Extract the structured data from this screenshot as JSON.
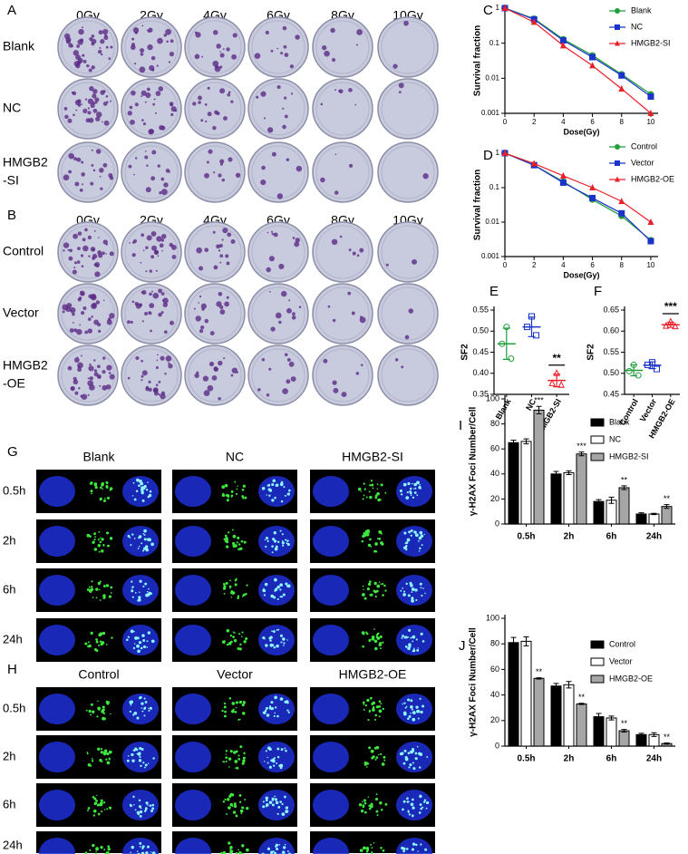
{
  "image_panels": [
    {
      "panel": "A",
      "columns": [
        "0Gy",
        "2Gy",
        "4Gy",
        "6Gy",
        "8Gy",
        "10Gy"
      ],
      "rows": [
        [
          "Blank"
        ],
        [
          "NC"
        ],
        [
          "HMGB2",
          "-SI"
        ]
      ]
    },
    {
      "panel": "B",
      "columns": [
        "0Gy",
        "2Gy",
        "4Gy",
        "6Gy",
        "8Gy",
        "10Gy"
      ],
      "rows": [
        [
          "Control"
        ],
        [
          "Vector"
        ],
        [
          "HMGB2",
          "-OE"
        ]
      ]
    },
    {
      "panel": "G",
      "columns": [
        "Blank",
        "NC",
        "HMGB2-SI"
      ],
      "rows": [
        "0.5h",
        "2h",
        "6h",
        "24h"
      ]
    },
    {
      "panel": "H",
      "columns": [
        "Control",
        "Vector",
        "HMGB2-OE"
      ],
      "rows": [
        "0.5h",
        "2h",
        "6h",
        "24h"
      ]
    }
  ],
  "chart_data": [
    {
      "panel": "C",
      "type": "line",
      "log_y": true,
      "ylabel": "Survival fraction",
      "xlabel": "Dose(Gy)",
      "x": [
        0,
        2,
        4,
        6,
        8,
        10
      ],
      "xlim": [
        0,
        10.5
      ],
      "xticks": [
        0,
        2,
        4,
        6,
        8,
        10
      ],
      "ylim": [
        0.001,
        1
      ],
      "yticks": [
        0.001,
        0.01,
        0.1,
        1
      ],
      "legend": "upper right",
      "series": [
        {
          "name": "Blank",
          "color": "#1f9e3a",
          "marker": "circle",
          "values": [
            1,
            0.5,
            0.13,
            0.045,
            0.013,
            0.0035
          ]
        },
        {
          "name": "NC",
          "color": "#1a33c8",
          "marker": "square",
          "values": [
            1,
            0.48,
            0.12,
            0.04,
            0.012,
            0.003
          ]
        },
        {
          "name": "HMGB2-SI",
          "color": "#e8202a",
          "marker": "triangle",
          "values": [
            1,
            0.4,
            0.085,
            0.023,
            0.005,
            0.001
          ]
        }
      ]
    },
    {
      "panel": "D",
      "type": "line",
      "log_y": true,
      "ylabel": "Survival fraction",
      "xlabel": "Dose(Gy)",
      "x": [
        0,
        2,
        4,
        6,
        8,
        10
      ],
      "xlim": [
        0,
        10.5
      ],
      "xticks": [
        0,
        2,
        4,
        6,
        8,
        10
      ],
      "ylim": [
        0.001,
        1
      ],
      "yticks": [
        0.001,
        0.01,
        0.1,
        1
      ],
      "legend": "upper right",
      "series": [
        {
          "name": "Control",
          "color": "#1f9e3a",
          "marker": "circle",
          "values": [
            1,
            0.45,
            0.15,
            0.045,
            0.015,
            0.003
          ]
        },
        {
          "name": "Vector",
          "color": "#1a33c8",
          "marker": "square",
          "values": [
            1,
            0.45,
            0.14,
            0.05,
            0.018,
            0.0028
          ]
        },
        {
          "name": "HMGB2-OE",
          "color": "#e8202a",
          "marker": "triangle",
          "values": [
            1,
            0.5,
            0.22,
            0.1,
            0.04,
            0.01
          ]
        }
      ]
    },
    {
      "panel": "E",
      "type": "strip",
      "ylabel": "SF2",
      "categories": [
        "Blank",
        "NC",
        "HMGB2-SI"
      ],
      "ylim": [
        0.35,
        0.55
      ],
      "yticks": [
        0.35,
        {
          "value": 0.4,
          "label": "0.40"
        },
        0.45,
        {
          "value": 0.5,
          "label": "0.50"
        },
        0.55
      ],
      "groups": [
        {
          "color": "#1f9e3a",
          "marker": "circle",
          "values": [
            0.51,
            0.47,
            0.435
          ],
          "mean": 0.47,
          "sd": 0.037
        },
        {
          "color": "#1a33c8",
          "marker": "square",
          "values": [
            0.535,
            0.51,
            0.49
          ],
          "mean": 0.51,
          "sd": 0.023
        },
        {
          "color": "#e8202a",
          "marker": "triangle",
          "values": [
            0.4,
            0.376,
            0.372
          ],
          "mean": 0.383,
          "sd": 0.015,
          "annotation": "**"
        }
      ]
    },
    {
      "panel": "F",
      "type": "strip",
      "ylabel": "SF2",
      "categories": [
        "Control",
        "Vector",
        "HMGB2-OE"
      ],
      "ylim": [
        0.45,
        0.65
      ],
      "yticks": [
        0.45,
        {
          "value": 0.5,
          "label": "0.50"
        },
        0.55,
        {
          "value": 0.6,
          "label": "0.60"
        },
        0.65
      ],
      "groups": [
        {
          "color": "#1f9e3a",
          "marker": "circle",
          "values": [
            0.52,
            0.505,
            0.495
          ],
          "mean": 0.507,
          "sd": 0.013
        },
        {
          "color": "#1a33c8",
          "marker": "square",
          "values": [
            0.526,
            0.52,
            0.51
          ],
          "mean": 0.519,
          "sd": 0.008
        },
        {
          "color": "#e8202a",
          "marker": "triangle",
          "values": [
            0.622,
            0.612,
            0.611
          ],
          "mean": 0.615,
          "sd": 0.006,
          "annotation": "***"
        }
      ]
    },
    {
      "panel": "I",
      "type": "bar",
      "ylabel": "γ-H2AX Foci Number/Cell",
      "categories": [
        "0.5h",
        "2h",
        "6h",
        "24h"
      ],
      "ylim": [
        0,
        100
      ],
      "yticks": [
        0,
        20,
        40,
        60,
        80,
        100
      ],
      "legend": "upper right",
      "series": [
        {
          "name": "Blank",
          "color": "#000000",
          "values": [
            65,
            40,
            18,
            8
          ],
          "errors": [
            2,
            2,
            1.5,
            1
          ]
        },
        {
          "name": "NC",
          "color": "#ffffff",
          "values": [
            66,
            41,
            19,
            8
          ],
          "errors": [
            2,
            1.5,
            2.5,
            0.5
          ]
        },
        {
          "name": "HMGB2-SI",
          "color": "#a6a6a6",
          "values": [
            91,
            56,
            29,
            14
          ],
          "errors": [
            3,
            1.5,
            1.5,
            1.5
          ],
          "annotations": [
            "***",
            "***",
            "**",
            "**"
          ]
        }
      ]
    },
    {
      "panel": "J",
      "type": "bar",
      "ylabel": "γ-H2AX Foci Number/Cell",
      "categories": [
        "0.5h",
        "2h",
        "6h",
        "24h"
      ],
      "ylim": [
        0,
        100
      ],
      "yticks": [
        0,
        20,
        40,
        60,
        80,
        100
      ],
      "legend": "upper right",
      "series": [
        {
          "name": "Control",
          "color": "#000000",
          "values": [
            81,
            47,
            23,
            9
          ],
          "errors": [
            4,
            2,
            2.5,
            1
          ]
        },
        {
          "name": "Vector",
          "color": "#ffffff",
          "values": [
            82,
            48,
            22,
            9
          ],
          "errors": [
            3.5,
            2.5,
            1.5,
            1.5
          ]
        },
        {
          "name": "HMGB2-OE",
          "color": "#a6a6a6",
          "values": [
            53,
            33,
            12,
            2
          ],
          "errors": [
            0.5,
            0.5,
            1,
            0.5
          ],
          "annotations": [
            "**",
            "**",
            "**",
            "**"
          ]
        }
      ]
    }
  ]
}
